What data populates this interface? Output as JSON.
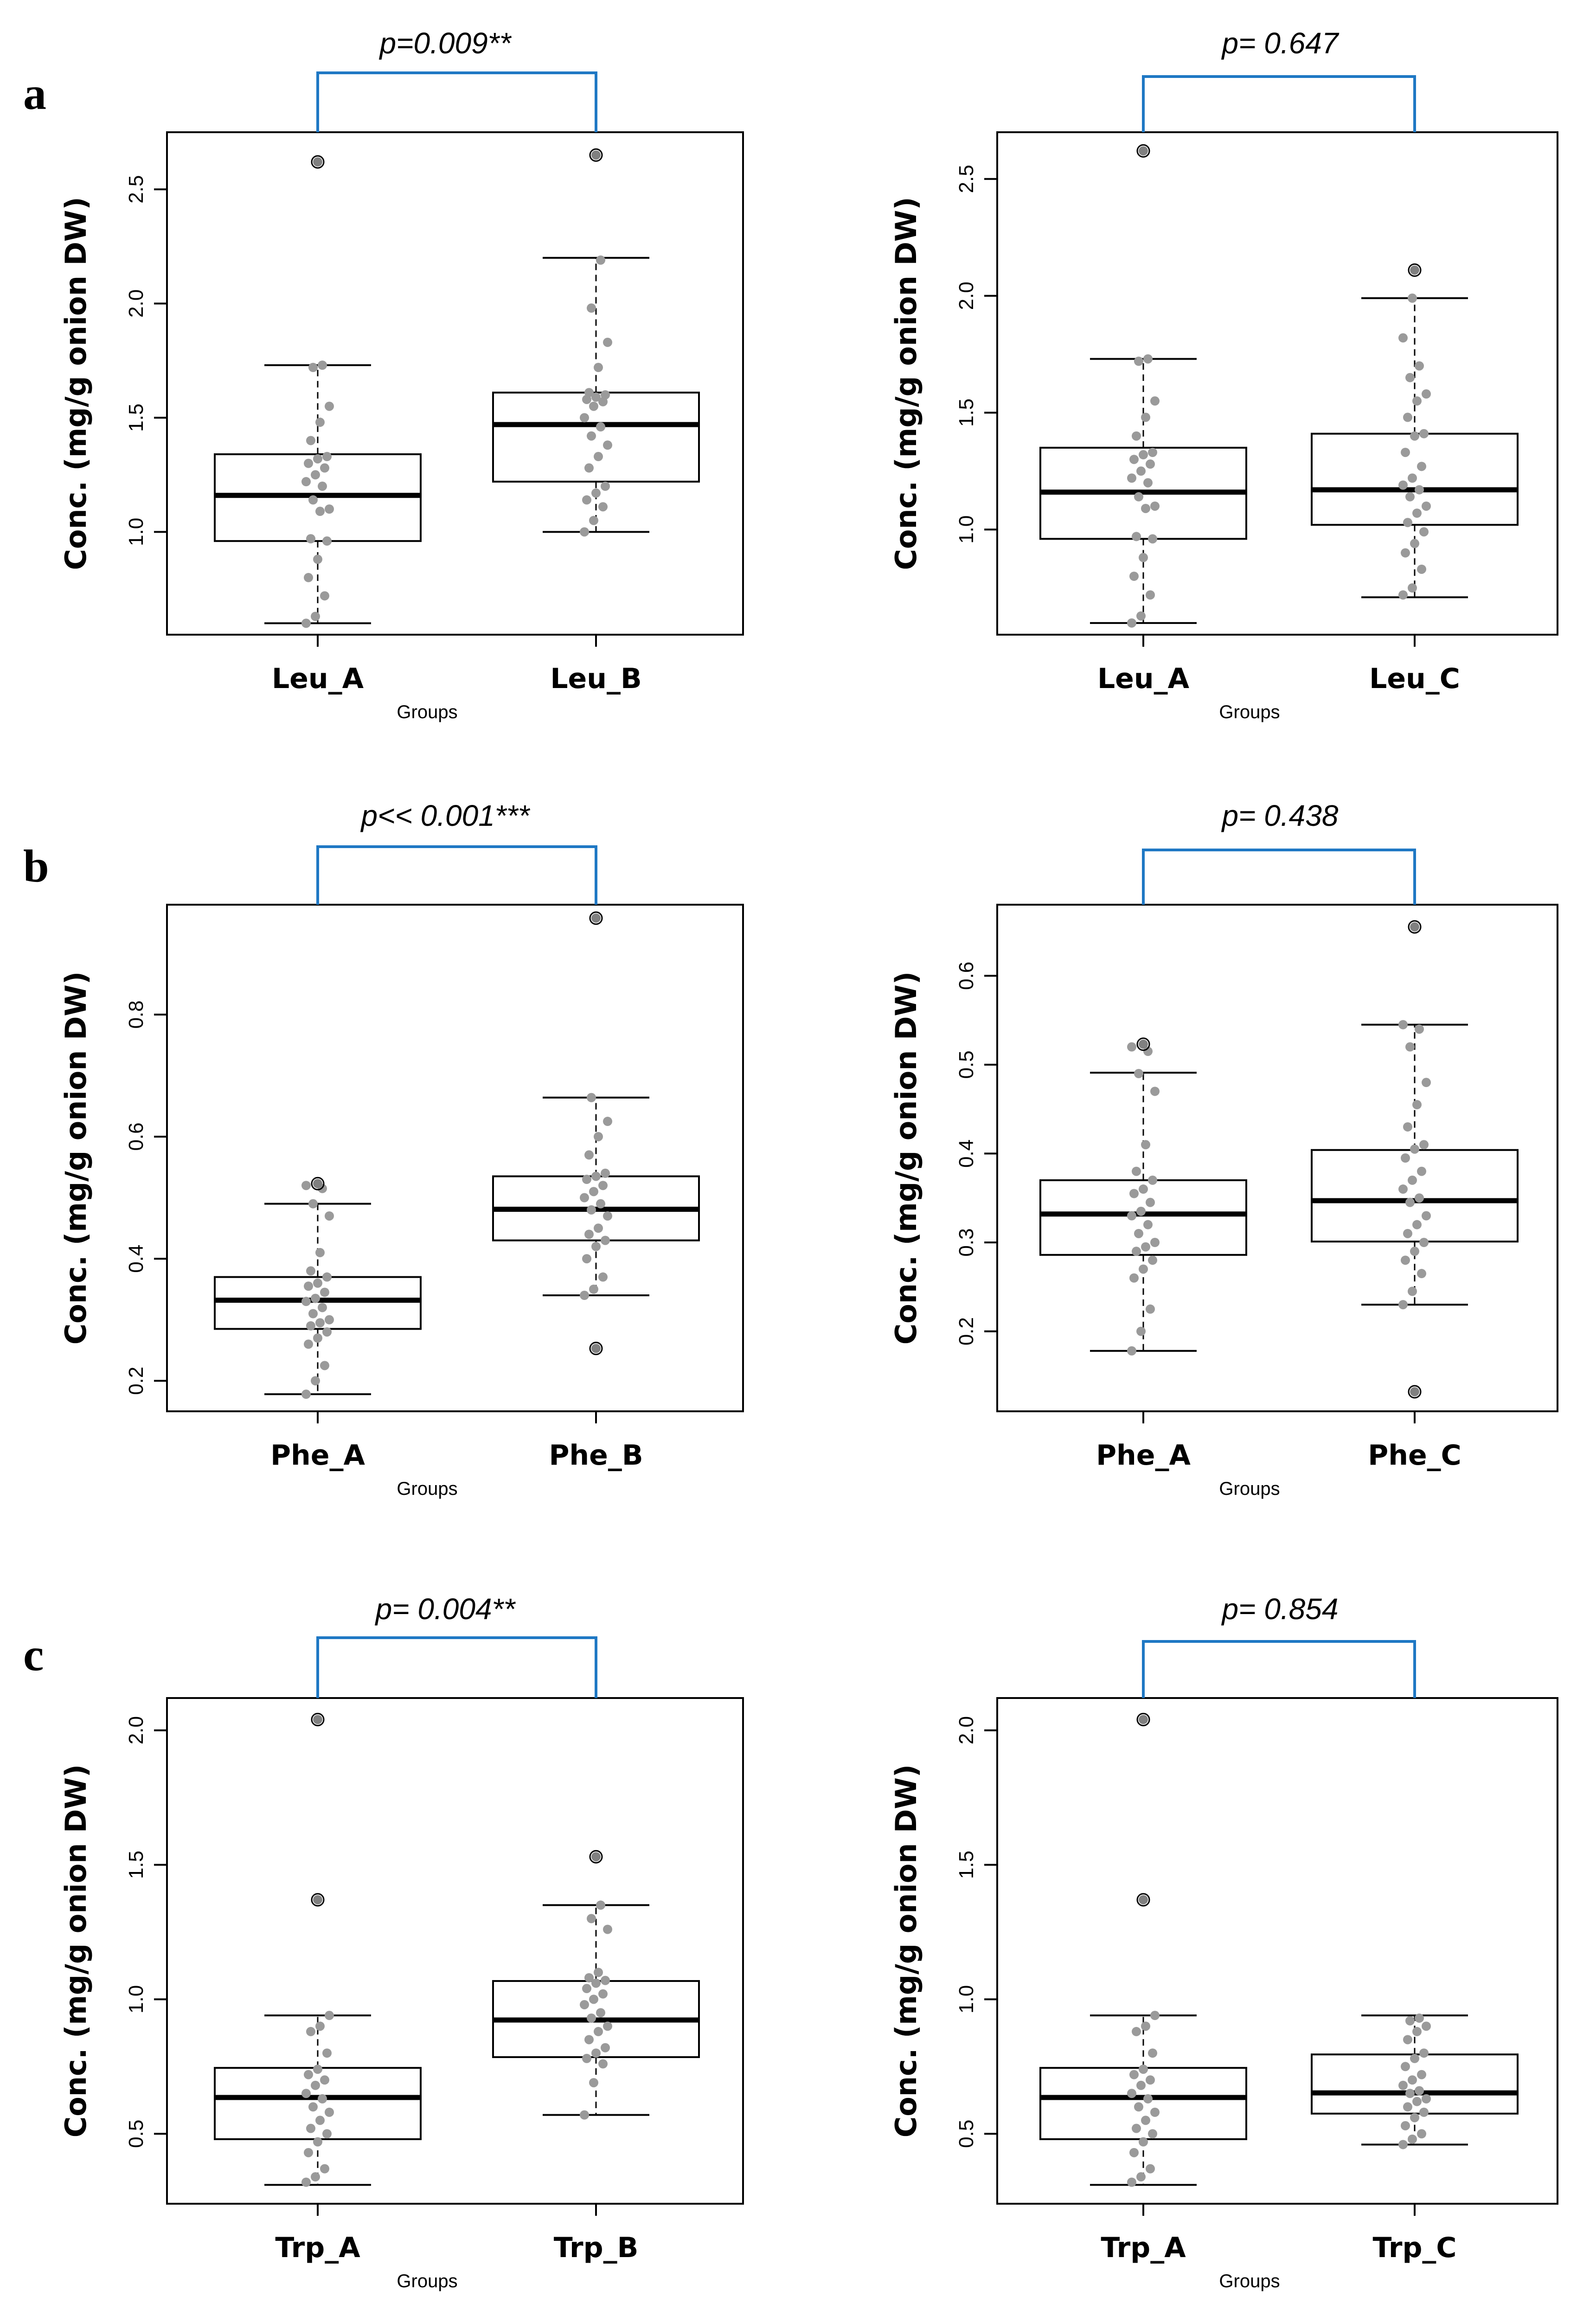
{
  "panel_labels": [
    "a",
    "b",
    "c"
  ],
  "chart_data": [
    {
      "type": "box",
      "panel": "a",
      "categories": [
        "Leu_A",
        "Leu_B"
      ],
      "xlabel": "Groups",
      "ylabel": "Conc. (mg/g onion DW)",
      "ylim": [
        0.55,
        2.75
      ],
      "yticks": [
        1.0,
        1.5,
        2.0,
        2.5
      ],
      "ytick_labels": [
        "1.0",
        "1.5",
        "2.0",
        "2.5"
      ],
      "pvalue": "p=0.009**",
      "boxes": [
        {
          "q1": 0.96,
          "median": 1.16,
          "q3": 1.34,
          "whisker_low": 0.6,
          "whisker_high": 1.73,
          "outliers": [
            2.62
          ],
          "points": [
            0.6,
            0.63,
            0.72,
            0.8,
            0.88,
            0.96,
            0.97,
            1.09,
            1.1,
            1.14,
            1.2,
            1.22,
            1.25,
            1.28,
            1.3,
            1.32,
            1.33,
            1.4,
            1.48,
            1.55,
            1.72,
            1.73
          ]
        },
        {
          "q1": 1.22,
          "median": 1.47,
          "q3": 1.61,
          "whisker_low": 1.0,
          "whisker_high": 2.2,
          "outliers": [
            2.65
          ],
          "points": [
            1.0,
            1.05,
            1.11,
            1.14,
            1.17,
            1.2,
            1.28,
            1.33,
            1.38,
            1.42,
            1.46,
            1.5,
            1.55,
            1.57,
            1.58,
            1.59,
            1.6,
            1.61,
            1.72,
            1.83,
            1.98,
            2.19
          ]
        }
      ]
    },
    {
      "type": "box",
      "panel": "a",
      "categories": [
        "Leu_A",
        "Leu_C"
      ],
      "xlabel": "Groups",
      "ylabel": "Conc. (mg/g onion DW)",
      "ylim": [
        0.55,
        2.7
      ],
      "yticks": [
        1.0,
        1.5,
        2.0,
        2.5
      ],
      "ytick_labels": [
        "1.0",
        "1.5",
        "2.0",
        "2.5"
      ],
      "pvalue": "p= 0.647",
      "boxes": [
        {
          "q1": 0.96,
          "median": 1.16,
          "q3": 1.35,
          "whisker_low": 0.6,
          "whisker_high": 1.73,
          "outliers": [
            2.62
          ],
          "points": [
            0.6,
            0.63,
            0.72,
            0.8,
            0.88,
            0.96,
            0.97,
            1.09,
            1.1,
            1.14,
            1.2,
            1.22,
            1.25,
            1.28,
            1.3,
            1.32,
            1.33,
            1.4,
            1.48,
            1.55,
            1.72,
            1.73
          ]
        },
        {
          "q1": 1.02,
          "median": 1.17,
          "q3": 1.41,
          "whisker_low": 0.71,
          "whisker_high": 1.99,
          "outliers": [
            2.11
          ],
          "points": [
            0.72,
            0.75,
            0.83,
            0.9,
            0.94,
            0.99,
            1.03,
            1.07,
            1.1,
            1.14,
            1.17,
            1.19,
            1.22,
            1.27,
            1.33,
            1.4,
            1.41,
            1.48,
            1.55,
            1.58,
            1.65,
            1.7,
            1.82,
            1.99
          ]
        }
      ]
    },
    {
      "type": "box",
      "panel": "b",
      "categories": [
        "Phe_A",
        "Phe_B"
      ],
      "xlabel": "Groups",
      "ylabel": "Conc. (mg/g onion DW)",
      "ylim": [
        0.15,
        0.98
      ],
      "yticks": [
        0.2,
        0.4,
        0.6,
        0.8
      ],
      "ytick_labels": [
        "0.2",
        "0.4",
        "0.6",
        "0.8"
      ],
      "pvalue": "p<< 0.001***",
      "boxes": [
        {
          "q1": 0.285,
          "median": 0.332,
          "q3": 0.37,
          "whisker_low": 0.178,
          "whisker_high": 0.49,
          "outliers": [
            0.523
          ],
          "points": [
            0.178,
            0.2,
            0.225,
            0.26,
            0.27,
            0.28,
            0.29,
            0.295,
            0.3,
            0.31,
            0.32,
            0.33,
            0.335,
            0.345,
            0.355,
            0.36,
            0.37,
            0.38,
            0.41,
            0.47,
            0.49,
            0.515,
            0.52
          ]
        },
        {
          "q1": 0.43,
          "median": 0.481,
          "q3": 0.535,
          "whisker_low": 0.34,
          "whisker_high": 0.664,
          "outliers": [
            0.253,
            0.958
          ],
          "points": [
            0.34,
            0.35,
            0.37,
            0.4,
            0.42,
            0.43,
            0.44,
            0.45,
            0.47,
            0.48,
            0.49,
            0.5,
            0.51,
            0.52,
            0.53,
            0.535,
            0.54,
            0.57,
            0.6,
            0.625,
            0.664
          ]
        }
      ]
    },
    {
      "type": "box",
      "panel": "b",
      "categories": [
        "Phe_A",
        "Phe_C"
      ],
      "xlabel": "Groups",
      "ylabel": "Conc. (mg/g onion DW)",
      "ylim": [
        0.11,
        0.68
      ],
      "yticks": [
        0.2,
        0.3,
        0.4,
        0.5,
        0.6
      ],
      "ytick_labels": [
        "0.2",
        "0.3",
        "0.4",
        "0.5",
        "0.6"
      ],
      "pvalue": "p= 0.438",
      "boxes": [
        {
          "q1": 0.286,
          "median": 0.332,
          "q3": 0.37,
          "whisker_low": 0.178,
          "whisker_high": 0.491,
          "outliers": [
            0.523
          ],
          "points": [
            0.178,
            0.2,
            0.225,
            0.26,
            0.27,
            0.28,
            0.29,
            0.295,
            0.3,
            0.31,
            0.32,
            0.33,
            0.335,
            0.345,
            0.355,
            0.36,
            0.37,
            0.38,
            0.41,
            0.47,
            0.49,
            0.515,
            0.52
          ]
        },
        {
          "q1": 0.301,
          "median": 0.347,
          "q3": 0.404,
          "whisker_low": 0.23,
          "whisker_high": 0.545,
          "outliers": [
            0.132,
            0.655
          ],
          "points": [
            0.23,
            0.245,
            0.265,
            0.28,
            0.29,
            0.3,
            0.31,
            0.32,
            0.33,
            0.345,
            0.35,
            0.36,
            0.37,
            0.38,
            0.395,
            0.405,
            0.41,
            0.43,
            0.455,
            0.48,
            0.52,
            0.54,
            0.545
          ]
        }
      ]
    },
    {
      "type": "box",
      "panel": "c",
      "categories": [
        "Trp_A",
        "Trp_B"
      ],
      "xlabel": "Groups",
      "ylabel": "Conc. (mg/g onion DW)",
      "ylim": [
        0.24,
        2.12
      ],
      "yticks": [
        0.5,
        1.0,
        1.5,
        2.0
      ],
      "ytick_labels": [
        "0.5",
        "1.0",
        "1.5",
        "2.0"
      ],
      "pvalue": "p= 0.004**",
      "boxes": [
        {
          "q1": 0.48,
          "median": 0.635,
          "q3": 0.745,
          "whisker_low": 0.31,
          "whisker_high": 0.94,
          "outliers": [
            1.37,
            2.04
          ],
          "points": [
            0.32,
            0.34,
            0.37,
            0.43,
            0.47,
            0.5,
            0.52,
            0.55,
            0.58,
            0.6,
            0.63,
            0.65,
            0.68,
            0.7,
            0.72,
            0.74,
            0.8,
            0.88,
            0.9,
            0.94
          ]
        },
        {
          "q1": 0.785,
          "median": 0.923,
          "q3": 1.068,
          "whisker_low": 0.57,
          "whisker_high": 1.35,
          "outliers": [
            1.53
          ],
          "points": [
            0.57,
            0.69,
            0.76,
            0.78,
            0.8,
            0.82,
            0.85,
            0.88,
            0.9,
            0.93,
            0.95,
            0.98,
            1.0,
            1.02,
            1.04,
            1.06,
            1.07,
            1.08,
            1.1,
            1.26,
            1.3,
            1.35
          ]
        }
      ]
    },
    {
      "type": "box",
      "panel": "c",
      "categories": [
        "Trp_A",
        "Trp_C"
      ],
      "xlabel": "Groups",
      "ylabel": "Conc. (mg/g onion DW)",
      "ylim": [
        0.24,
        2.12
      ],
      "yticks": [
        0.5,
        1.0,
        1.5,
        2.0
      ],
      "ytick_labels": [
        "0.5",
        "1.0",
        "1.5",
        "2.0"
      ],
      "pvalue": "p= 0.854",
      "boxes": [
        {
          "q1": 0.48,
          "median": 0.635,
          "q3": 0.745,
          "whisker_low": 0.31,
          "whisker_high": 0.94,
          "outliers": [
            1.37,
            2.04
          ],
          "points": [
            0.32,
            0.34,
            0.37,
            0.43,
            0.47,
            0.5,
            0.52,
            0.55,
            0.58,
            0.6,
            0.63,
            0.65,
            0.68,
            0.7,
            0.72,
            0.74,
            0.8,
            0.88,
            0.9,
            0.94
          ]
        },
        {
          "q1": 0.575,
          "median": 0.652,
          "q3": 0.795,
          "whisker_low": 0.46,
          "whisker_high": 0.94,
          "outliers": [],
          "points": [
            0.46,
            0.48,
            0.5,
            0.53,
            0.56,
            0.58,
            0.6,
            0.62,
            0.63,
            0.65,
            0.66,
            0.68,
            0.7,
            0.72,
            0.75,
            0.78,
            0.8,
            0.85,
            0.88,
            0.9,
            0.92,
            0.93
          ]
        }
      ]
    }
  ],
  "colors": {
    "bracket": "#1f78c4",
    "point": "#9a9a9a",
    "outlier": "#808080",
    "box": "#000000"
  }
}
